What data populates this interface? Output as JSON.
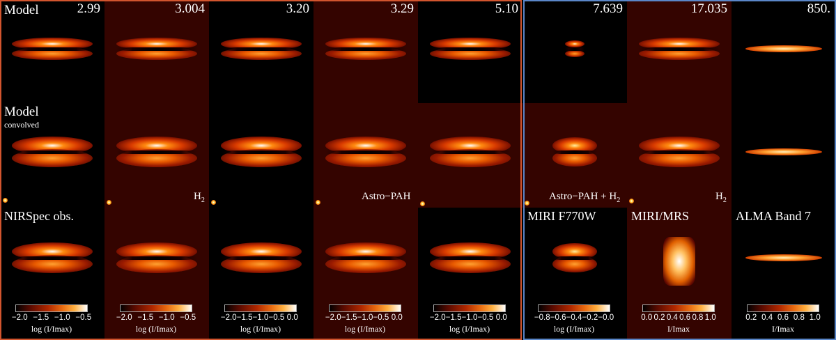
{
  "wavelengths": [
    "2.99",
    "3.004",
    "3.20",
    "3.29",
    "5.10",
    "7.639",
    "17.035",
    "850."
  ],
  "rows": {
    "model": "Model",
    "convolved_main": "Model",
    "convolved_sub": "convolved"
  },
  "annotations": {
    "h2_a": "H",
    "h2_a_sub": "2",
    "astro_pah": "Astro−PAH",
    "astro_pah_h2": "Astro−PAH + H",
    "astro_pah_h2_sub": "2",
    "h2_b": "H",
    "h2_b_sub": "2"
  },
  "instruments": {
    "nirspec": "NIRSpec obs.",
    "miri_f770w": "MIRI F770W",
    "miri_mrs": "MIRI/MRS",
    "alma": "ALMA Band 7"
  },
  "colorbars": [
    {
      "ticks": [
        "−2.0",
        "−1.5",
        "−1.0",
        "−0.5"
      ],
      "label": "log (I/Imax)"
    },
    {
      "ticks": [
        "−2.0",
        "−1.5",
        "−1.0",
        "−0.5"
      ],
      "label": "log (I/Imax)"
    },
    {
      "ticks": [
        "−2.0",
        "−1.5",
        "−1.0",
        "−0.5",
        "0.0"
      ],
      "label": "log (I/Imax)"
    },
    {
      "ticks": [
        "−2.0",
        "−1.5",
        "−1.0",
        "−0.5",
        "0.0"
      ],
      "label": "log (I/Imax)"
    },
    {
      "ticks": [
        "−2.0",
        "−1.5",
        "−1.0",
        "−0.5",
        "0.0"
      ],
      "label": "log (I/Imax)"
    },
    {
      "ticks": [
        "−0.8",
        "−0.6",
        "−0.4",
        "−0.2",
        "−0.0"
      ],
      "label": "log (I/Imax)"
    },
    {
      "ticks": [
        "0.0",
        "0.2",
        "0.4",
        "0.6",
        "0.8",
        "1.0"
      ],
      "label": "I/Imax"
    },
    {
      "ticks": [
        "0.2",
        "0.4",
        "0.6",
        "0.8",
        "1.0"
      ],
      "label": "I/Imax"
    }
  ],
  "colors": {
    "nirspec_frame": "#d2552e",
    "miri_frame": "#5a86c8",
    "colormap": [
      "#000000",
      "#5a0a00",
      "#b02800",
      "#e86a10",
      "#ffb040",
      "#ffffff"
    ]
  }
}
